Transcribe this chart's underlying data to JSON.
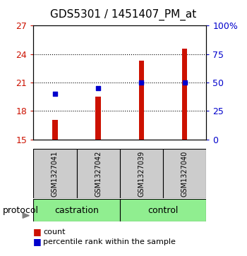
{
  "title": "GDS5301 / 1451407_PM_at",
  "samples": [
    "GSM1327041",
    "GSM1327042",
    "GSM1327039",
    "GSM1327040"
  ],
  "bar_values": [
    17.1,
    19.5,
    23.3,
    24.6
  ],
  "bar_baseline": 15.0,
  "percentile_values": [
    40.0,
    45.0,
    50.0,
    50.0
  ],
  "bar_color": "#cc1100",
  "percentile_color": "#0000cc",
  "ylim_left": [
    15,
    27
  ],
  "ylim_right": [
    0,
    100
  ],
  "yticks_left": [
    15,
    18,
    21,
    24,
    27
  ],
  "yticks_right": [
    0,
    25,
    50,
    75,
    100
  ],
  "ytick_labels_right": [
    "0",
    "25",
    "50",
    "75",
    "100%"
  ],
  "group_labels": [
    "castration",
    "control"
  ],
  "group_ranges": [
    [
      0,
      2
    ],
    [
      2,
      4
    ]
  ],
  "group_color": "#90ee90",
  "protocol_label": "protocol",
  "legend_count": "count",
  "legend_percentile": "percentile rank within the sample",
  "background_color": "#ffffff",
  "plot_bg_color": "#ffffff",
  "label_box_color": "#cccccc",
  "bar_width": 0.12,
  "grid_ticks": [
    18,
    21,
    24
  ],
  "title_fontsize": 11,
  "tick_fontsize": 9,
  "sample_fontsize": 7,
  "group_fontsize": 9,
  "legend_fontsize": 8
}
